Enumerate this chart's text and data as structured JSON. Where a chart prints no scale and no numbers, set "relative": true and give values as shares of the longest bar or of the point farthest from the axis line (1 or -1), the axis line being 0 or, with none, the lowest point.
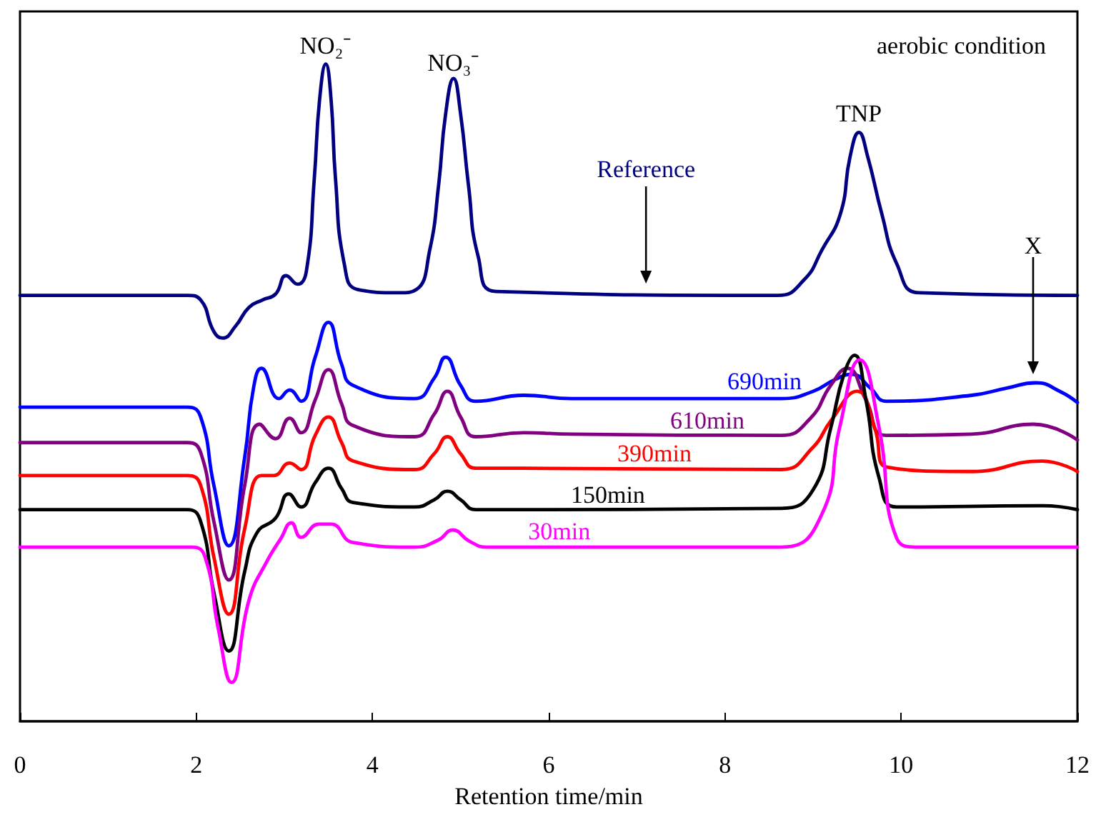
{
  "chart_data": {
    "type": "line",
    "relative": true,
    "xlabel": "Retention time/min",
    "xlim": [
      0,
      12
    ],
    "xticks": [
      0,
      2,
      4,
      6,
      8,
      10,
      12
    ],
    "annotations": [
      "aerobic condition",
      {
        "text": "NO₂⁻",
        "x": 3.47,
        "y": 1.0
      },
      {
        "text": "NO₃⁻",
        "x": 4.92,
        "y": 0.978
      },
      {
        "text": "TNP",
        "x": 9.52,
        "y": 0.896
      },
      "X"
    ],
    "series": [
      {
        "name": "Reference",
        "color": "#000080",
        "x": [
          0,
          1.9,
          2.05,
          2.2,
          2.3,
          2.45,
          2.6,
          2.75,
          2.9,
          3.02,
          3.15,
          3.25,
          3.34,
          3.4,
          3.47,
          3.53,
          3.58,
          3.68,
          3.83,
          4.3,
          4.5,
          4.65,
          4.75,
          4.83,
          4.92,
          5.0,
          5.09,
          5.2,
          5.4,
          8.6,
          8.9,
          9.1,
          9.31,
          9.42,
          9.52,
          9.62,
          9.78,
          9.95,
          10.2,
          12
        ],
        "values": [
          0.648,
          0.648,
          0.641,
          0.593,
          0.583,
          0.602,
          0.63,
          0.641,
          0.65,
          0.678,
          0.665,
          0.685,
          0.826,
          0.946,
          1.0,
          0.946,
          0.826,
          0.696,
          0.657,
          0.652,
          0.657,
          0.717,
          0.815,
          0.924,
          0.978,
          0.924,
          0.815,
          0.707,
          0.654,
          0.648,
          0.672,
          0.717,
          0.772,
          0.859,
          0.896,
          0.859,
          0.772,
          0.696,
          0.652,
          0.648
        ]
      },
      {
        "name": "690min",
        "color": "#0000ff",
        "x": [
          0,
          1.9,
          2.05,
          2.2,
          2.37,
          2.55,
          2.65,
          2.74,
          2.94,
          3.06,
          3.19,
          3.35,
          3.5,
          3.65,
          3.78,
          4.48,
          4.7,
          4.83,
          5.0,
          5.17,
          5.72,
          6.26,
          8.64,
          9.0,
          9.25,
          9.44,
          9.65,
          9.83,
          10.8,
          11.2,
          11.53,
          11.8,
          12
        ],
        "values": [
          0.478,
          0.478,
          0.463,
          0.359,
          0.267,
          0.402,
          0.507,
          0.537,
          0.491,
          0.504,
          0.487,
          0.554,
          0.607,
          0.543,
          0.511,
          0.491,
          0.522,
          0.554,
          0.511,
          0.487,
          0.496,
          0.491,
          0.491,
          0.502,
          0.52,
          0.528,
          0.507,
          0.487,
          0.496,
          0.507,
          0.515,
          0.502,
          0.485
        ]
      },
      {
        "name": "610min",
        "color": "#800080",
        "x": [
          0,
          1.9,
          2.05,
          2.2,
          2.37,
          2.55,
          2.72,
          2.9,
          3.06,
          3.19,
          3.35,
          3.5,
          3.65,
          3.78,
          4.48,
          4.7,
          4.85,
          5.0,
          5.17,
          5.72,
          6.26,
          8.64,
          8.97,
          9.2,
          9.39,
          9.6,
          9.83,
          10.8,
          11.5,
          12
        ],
        "values": [
          0.424,
          0.424,
          0.409,
          0.304,
          0.215,
          0.359,
          0.452,
          0.43,
          0.461,
          0.439,
          0.489,
          0.535,
          0.483,
          0.45,
          0.433,
          0.467,
          0.502,
          0.463,
          0.433,
          0.439,
          0.437,
          0.435,
          0.461,
          0.511,
          0.537,
          0.489,
          0.435,
          0.437,
          0.452,
          0.428
        ]
      },
      {
        "name": "390min",
        "color": "#ff0000",
        "x": [
          0,
          1.9,
          2.05,
          2.2,
          2.37,
          2.55,
          2.74,
          2.88,
          3.06,
          3.19,
          3.35,
          3.5,
          3.65,
          3.78,
          4.48,
          4.7,
          4.85,
          5.0,
          5.17,
          5.72,
          8.64,
          9.0,
          9.2,
          9.5,
          9.7,
          9.83,
          10.8,
          11.6,
          12
        ],
        "values": [
          0.374,
          0.374,
          0.359,
          0.25,
          0.163,
          0.293,
          0.374,
          0.374,
          0.393,
          0.383,
          0.435,
          0.463,
          0.424,
          0.396,
          0.383,
          0.407,
          0.433,
          0.407,
          0.385,
          0.385,
          0.383,
          0.417,
          0.457,
          0.502,
          0.446,
          0.387,
          0.38,
          0.396,
          0.38
        ]
      },
      {
        "name": "150min",
        "color": "#000000",
        "x": [
          0,
          1.9,
          2.05,
          2.2,
          2.37,
          2.55,
          2.69,
          2.9,
          3.05,
          3.19,
          3.35,
          3.5,
          3.65,
          3.78,
          4.48,
          4.7,
          4.85,
          5.0,
          5.17,
          8.64,
          9.0,
          9.2,
          9.35,
          9.47,
          9.6,
          9.75,
          9.95,
          11.6,
          12
        ],
        "values": [
          0.322,
          0.322,
          0.304,
          0.196,
          0.107,
          0.228,
          0.287,
          0.309,
          0.346,
          0.326,
          0.363,
          0.385,
          0.354,
          0.333,
          0.326,
          0.337,
          0.35,
          0.337,
          0.322,
          0.324,
          0.352,
          0.446,
          0.528,
          0.557,
          0.489,
          0.37,
          0.326,
          0.328,
          0.322
        ]
      },
      {
        "name": "30min",
        "color": "#ff00ff",
        "x": [
          0,
          1.95,
          2.1,
          2.25,
          2.4,
          2.6,
          2.8,
          2.96,
          3.08,
          3.19,
          3.39,
          3.53,
          3.78,
          4.48,
          4.75,
          4.91,
          5.1,
          5.3,
          8.64,
          9.1,
          9.3,
          9.53,
          9.75,
          9.95,
          10.2,
          12
        ],
        "values": [
          0.265,
          0.265,
          0.25,
          0.141,
          0.059,
          0.185,
          0.243,
          0.278,
          0.302,
          0.28,
          0.3,
          0.3,
          0.272,
          0.265,
          0.276,
          0.291,
          0.274,
          0.265,
          0.265,
          0.315,
          0.446,
          0.55,
          0.446,
          0.278,
          0.265,
          0.265
        ]
      }
    ]
  }
}
